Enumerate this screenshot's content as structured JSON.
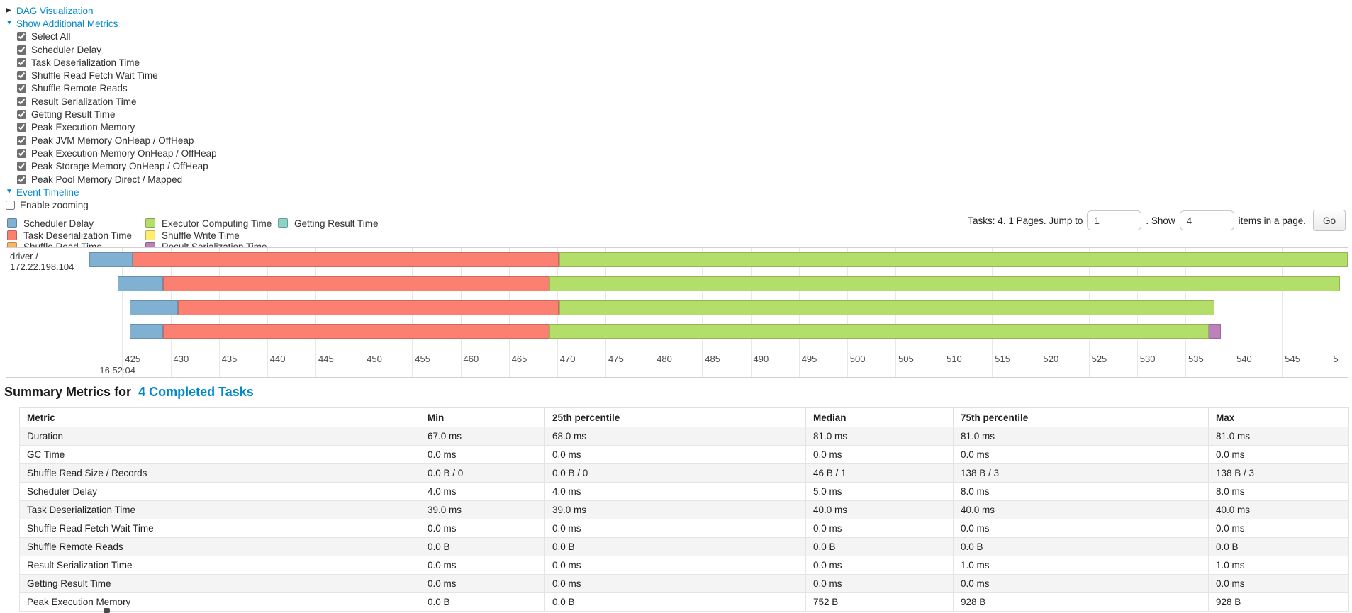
{
  "colors": {
    "link": "#0088cc",
    "scheduler_delay": "#80B1D3",
    "task_deserialization": "#FB8072",
    "shuffle_read": "#FDB462",
    "executor_computing": "#B3DE69",
    "shuffle_write": "#FFED6F",
    "result_serialization": "#BC80BD",
    "getting_result": "#8DD3C7"
  },
  "controls": {
    "dag_label": "DAG Visualization",
    "metrics_label": "Show Additional Metrics",
    "metric_checkboxes": [
      {
        "label": "Select All",
        "checked": true
      },
      {
        "label": "Scheduler Delay",
        "checked": true
      },
      {
        "label": "Task Deserialization Time",
        "checked": true
      },
      {
        "label": "Shuffle Read Fetch Wait Time",
        "checked": true
      },
      {
        "label": "Shuffle Remote Reads",
        "checked": true
      },
      {
        "label": "Result Serialization Time",
        "checked": true
      },
      {
        "label": "Getting Result Time",
        "checked": true
      },
      {
        "label": "Peak Execution Memory",
        "checked": true
      },
      {
        "label": "Peak JVM Memory OnHeap / OffHeap",
        "checked": true
      },
      {
        "label": "Peak Execution Memory OnHeap / OffHeap",
        "checked": true
      },
      {
        "label": "Peak Storage Memory OnHeap / OffHeap",
        "checked": true
      },
      {
        "label": "Peak Pool Memory Direct / Mapped",
        "checked": true
      }
    ],
    "event_timeline_label": "Event Timeline",
    "enable_zooming": {
      "label": "Enable zooming",
      "checked": false
    }
  },
  "legend": {
    "columns": [
      [
        {
          "label": "Scheduler Delay",
          "color_key": "scheduler_delay"
        },
        {
          "label": "Task Deserialization Time",
          "color_key": "task_deserialization"
        },
        {
          "label": "Shuffle Read Time",
          "color_key": "shuffle_read"
        }
      ],
      [
        {
          "label": "Executor Computing Time",
          "color_key": "executor_computing"
        },
        {
          "label": "Shuffle Write Time",
          "color_key": "shuffle_write"
        },
        {
          "label": "Result Serialization Time",
          "color_key": "result_serialization"
        }
      ],
      [
        {
          "label": "Getting Result Time",
          "color_key": "getting_result"
        }
      ]
    ]
  },
  "pagination": {
    "prefix": "Tasks: 4. 1 Pages. Jump to",
    "jump_value": "1",
    "mid": ". Show",
    "show_value": "4",
    "suffix": "items in a page.",
    "go": "Go"
  },
  "timeline": {
    "type": "timeline",
    "group_label": "driver / 172.22.198.104",
    "axis_time_label": "16:52:04",
    "axis_ticks": [
      425,
      430,
      435,
      440,
      445,
      450,
      455,
      460,
      465,
      470,
      475,
      480,
      485,
      490,
      495,
      500,
      505,
      510,
      515,
      520,
      525,
      530,
      535,
      540,
      545
    ],
    "extra_gridline": 550,
    "axis_clipped_label": "5",
    "value_range": [
      421.6,
      551.8
    ],
    "tasks": [
      {
        "segments": [
          {
            "kind": "scheduler_delay",
            "from": 421.6,
            "to": 426.1
          },
          {
            "kind": "task_deserialization",
            "from": 426.1,
            "to": 470.2
          },
          {
            "kind": "executor_computing",
            "from": 470.2,
            "to": 551.8
          }
        ]
      },
      {
        "segments": [
          {
            "kind": "scheduler_delay",
            "from": 424.5,
            "to": 429.2
          },
          {
            "kind": "task_deserialization",
            "from": 429.2,
            "to": 469.2
          },
          {
            "kind": "executor_computing",
            "from": 469.2,
            "to": 551.0
          }
        ]
      },
      {
        "segments": [
          {
            "kind": "scheduler_delay",
            "from": 425.8,
            "to": 430.8
          },
          {
            "kind": "task_deserialization",
            "from": 430.8,
            "to": 470.2
          },
          {
            "kind": "executor_computing",
            "from": 470.2,
            "to": 538.0
          }
        ]
      },
      {
        "segments": [
          {
            "kind": "scheduler_delay",
            "from": 425.8,
            "to": 429.2
          },
          {
            "kind": "task_deserialization",
            "from": 429.2,
            "to": 469.2
          },
          {
            "kind": "executor_computing",
            "from": 469.2,
            "to": 537.4
          },
          {
            "kind": "result_serialization",
            "from": 537.4,
            "to": 538.7
          }
        ]
      }
    ]
  },
  "summary": {
    "heading_prefix": "Summary Metrics for",
    "heading_link": "4 Completed Tasks",
    "columns": [
      "Metric",
      "Min",
      "25th percentile",
      "Median",
      "75th percentile",
      "Max"
    ],
    "rows": [
      {
        "metric": "Duration",
        "values": [
          "67.0 ms",
          "68.0 ms",
          "81.0 ms",
          "81.0 ms",
          "81.0 ms"
        ]
      },
      {
        "metric": "GC Time",
        "values": [
          "0.0 ms",
          "0.0 ms",
          "0.0 ms",
          "0.0 ms",
          "0.0 ms"
        ]
      },
      {
        "metric": "Shuffle Read Size / Records",
        "values": [
          "0.0 B / 0",
          "0.0 B / 0",
          "46 B / 1",
          "138 B / 3",
          "138 B / 3"
        ]
      },
      {
        "metric": "Scheduler Delay",
        "values": [
          "4.0 ms",
          "4.0 ms",
          "5.0 ms",
          "8.0 ms",
          "8.0 ms"
        ]
      },
      {
        "metric": "Task Deserialization Time",
        "values": [
          "39.0 ms",
          "39.0 ms",
          "40.0 ms",
          "40.0 ms",
          "40.0 ms"
        ]
      },
      {
        "metric": "Shuffle Read Fetch Wait Time",
        "values": [
          "0.0 ms",
          "0.0 ms",
          "0.0 ms",
          "0.0 ms",
          "0.0 ms"
        ]
      },
      {
        "metric": "Shuffle Remote Reads",
        "values": [
          "0.0 B",
          "0.0 B",
          "0.0 B",
          "0.0 B",
          "0.0 B"
        ]
      },
      {
        "metric": "Result Serialization Time",
        "values": [
          "0.0 ms",
          "0.0 ms",
          "0.0 ms",
          "1.0 ms",
          "1.0 ms"
        ]
      },
      {
        "metric": "Getting Result Time",
        "values": [
          "0.0 ms",
          "0.0 ms",
          "0.0 ms",
          "0.0 ms",
          "0.0 ms"
        ]
      },
      {
        "metric": "Peak Execution Memory",
        "values": [
          "0.0 B",
          "0.0 B",
          "752 B",
          "928 B",
          "928 B"
        ]
      }
    ]
  }
}
